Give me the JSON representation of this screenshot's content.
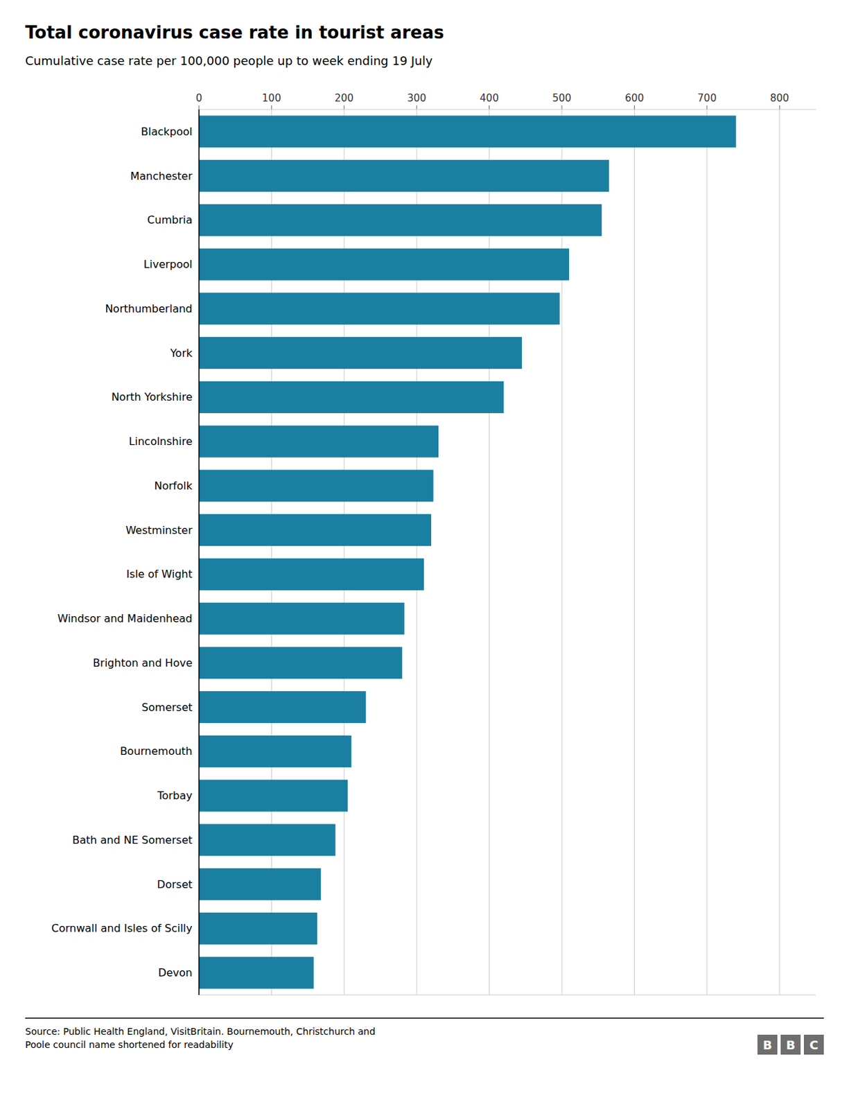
{
  "chart_data": {
    "type": "bar",
    "orientation": "horizontal",
    "title": "Total coronavirus case rate in tourist areas",
    "subtitle": "Cumulative case rate per 100,000 people up to week ending 19 July",
    "source": "Source: Public Health England, VisitBritain. Bournemouth, Christchurch and\nPoole council name shortened for readability",
    "logo": "BBC",
    "categories": [
      "Blackpool",
      "Manchester",
      "Cumbria",
      "Liverpool",
      "Northumberland",
      "York",
      "North Yorkshire",
      "Lincolnshire",
      "Norfolk",
      "Westminster",
      "Isle of Wight",
      "Windsor and Maidenhead",
      "Brighton and Hove",
      "Somerset",
      "Bournemouth",
      "Torbay",
      "Bath and NE Somerset",
      "Dorset",
      "Cornwall and Isles of Scilly",
      "Devon"
    ],
    "values": [
      740,
      565,
      555,
      510,
      497,
      445,
      420,
      330,
      323,
      320,
      310,
      283,
      280,
      230,
      210,
      205,
      188,
      168,
      163,
      158
    ],
    "color": "#1a7fa0",
    "xlim": [
      0,
      850
    ],
    "xticks": [
      0,
      100,
      200,
      300,
      400,
      500,
      600,
      700,
      800
    ],
    "grid": true
  }
}
